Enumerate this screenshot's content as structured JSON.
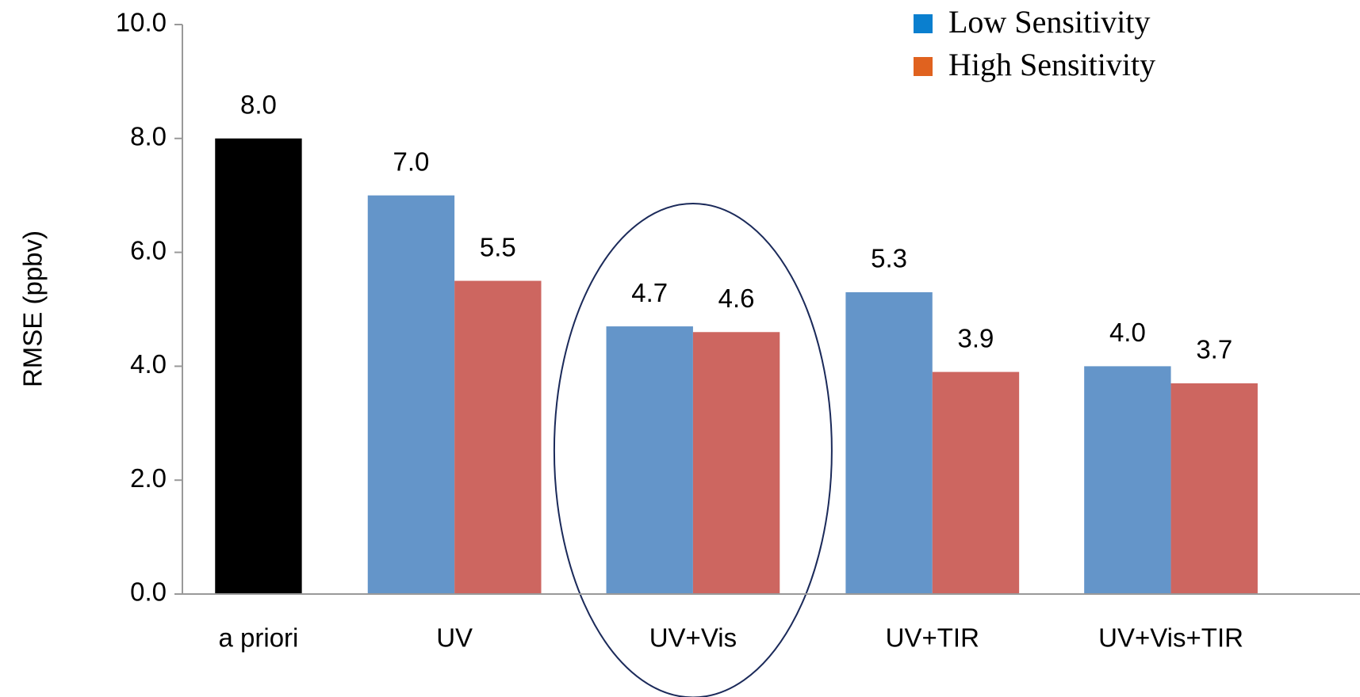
{
  "chart_data": {
    "type": "bar",
    "ylabel": "RMSE (ppbv)",
    "categories": [
      "a priori",
      "UV",
      "UV+Vis",
      "UV+TIR",
      "UV+Vis+TIR"
    ],
    "series": [
      {
        "color": "#000000",
        "values": [
          8.0,
          null,
          null,
          null,
          null
        ],
        "value_labels": [
          "8.0",
          null,
          null,
          null,
          null
        ]
      },
      {
        "name": "Low Sensitivity",
        "color": "#6495c9",
        "legend_color": "#0a7fcf",
        "values": [
          null,
          7.0,
          4.7,
          5.3,
          4.0
        ],
        "value_labels": [
          null,
          "7.0",
          "4.7",
          "5.3",
          "4.0"
        ]
      },
      {
        "name": "High Sensitivity",
        "color": "#cd6660",
        "legend_color": "#e0621f",
        "values": [
          null,
          5.5,
          4.6,
          3.9,
          3.7
        ],
        "value_labels": [
          null,
          "5.5",
          "4.6",
          "3.9",
          "3.7"
        ]
      }
    ],
    "ylim": [
      0,
      10
    ],
    "yticks": [
      {
        "value": 0,
        "label": "0.0"
      },
      {
        "value": 2,
        "label": "2.0"
      },
      {
        "value": 4,
        "label": "4.0"
      },
      {
        "value": 6,
        "label": "6.0"
      },
      {
        "value": 8,
        "label": "8.0"
      },
      {
        "value": 10,
        "label": "10.0"
      }
    ],
    "legend": "top-right"
  }
}
